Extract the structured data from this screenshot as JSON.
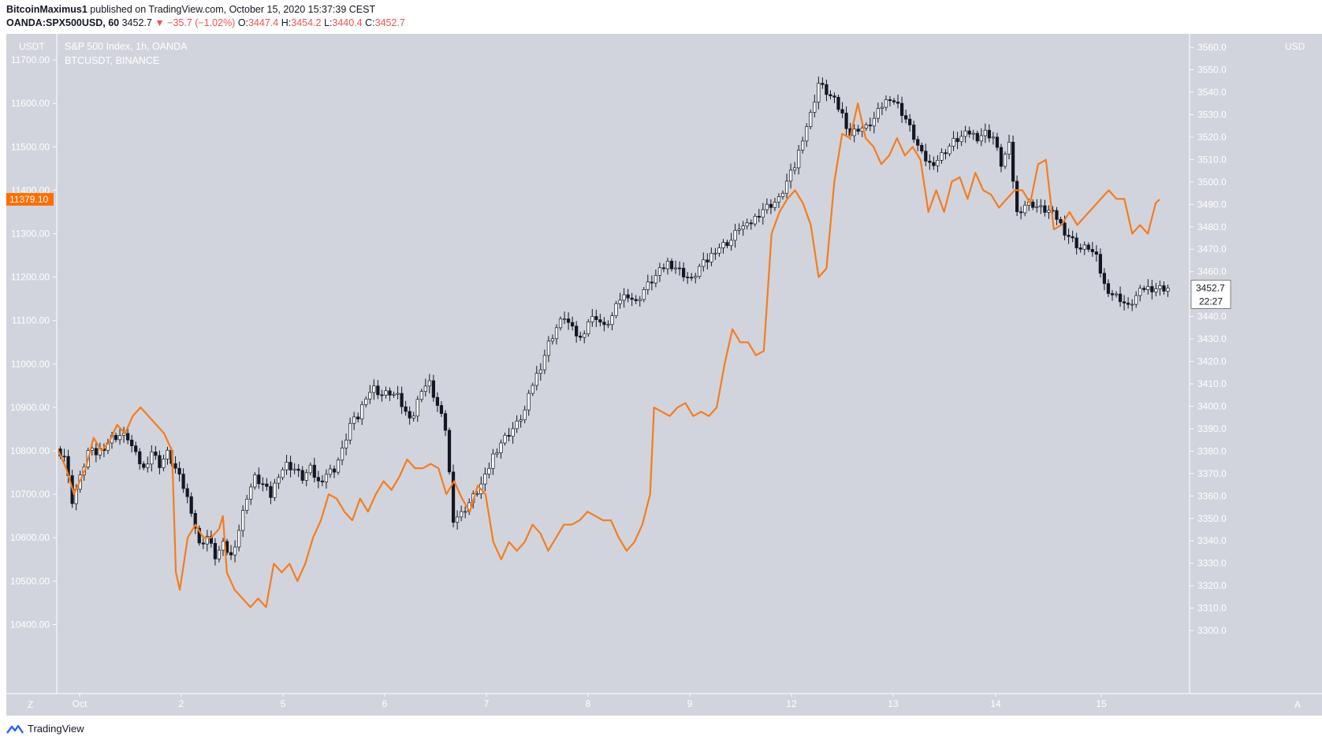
{
  "header": {
    "author": "BitcoinMaximus1",
    "published_text": "published on TradingView.com, October 15, 2020 15:37:39 CEST",
    "symbol": "OANDA:SPX500USD, 60",
    "last": "3452.7",
    "arrow": "▼",
    "change": "−35.7 (−1.02%)",
    "o_label": "O:",
    "o_val": "3447.4",
    "h_label": "H:",
    "h_val": "3454.2",
    "l_label": "L:",
    "l_val": "3440.4",
    "c_label": "C:",
    "c_val": "3452.7"
  },
  "legend": {
    "main": "S&P 500 Index, 1h, OANDA",
    "compare": "BTCUSDT, BINANCE"
  },
  "units": {
    "left": "USDT",
    "right": "USD"
  },
  "corners": {
    "left": "Z",
    "right": "A"
  },
  "footer": {
    "brand": "TradingView"
  },
  "colors": {
    "bg": "#d1d4dc",
    "btc": "#f57c1f",
    "up": "#ffffff",
    "down": "#131722",
    "wick": "#131722",
    "label_accent": "#ff6d00"
  },
  "chart_data": {
    "type": "line",
    "title": "S&P 500 Index, 1h, OANDA",
    "xlabel": "",
    "ylabel": "",
    "x_ticks": [
      "Oct",
      "2",
      "5",
      "6",
      "7",
      "8",
      "9",
      "12",
      "13",
      "14",
      "15"
    ],
    "left_axis": {
      "unit": "USDT",
      "ylim": [
        10350,
        11760
      ],
      "ticks": [
        "10400.00",
        "10500.00",
        "10600.00",
        "10700.00",
        "10800.00",
        "10900.00",
        "11000.00",
        "11100.00",
        "11200.00",
        "11300.00",
        "11400.00",
        "11500.00",
        "11600.00",
        "11700.00"
      ]
    },
    "right_axis": {
      "unit": "USD",
      "ylim": [
        3293,
        3566
      ],
      "ticks": [
        "3300.0",
        "3310.0",
        "3320.0",
        "3330.0",
        "3340.0",
        "3350.0",
        "3360.0",
        "3370.0",
        "3380.0",
        "3390.0",
        "3400.0",
        "3410.0",
        "3420.0",
        "3430.0",
        "3440.0",
        "3450.0",
        "3460.0",
        "3470.0",
        "3480.0",
        "3490.0",
        "3500.0",
        "3510.0",
        "3520.0",
        "3530.0",
        "3540.0",
        "3550.0",
        "3560.0"
      ]
    },
    "current_labels": {
      "btc": "11379.10",
      "spx": "3452.7",
      "countdown": "22:27"
    },
    "series": [
      {
        "name": "BTCUSDT, BINANCE",
        "axis": "left",
        "anchors": [
          [
            0,
            10800
          ],
          [
            2,
            10760
          ],
          [
            4,
            10700
          ],
          [
            7,
            10760
          ],
          [
            9,
            10830
          ],
          [
            11,
            10800
          ],
          [
            13,
            10820
          ],
          [
            15,
            10860
          ],
          [
            17,
            10840
          ],
          [
            19,
            10880
          ],
          [
            21,
            10900
          ],
          [
            23,
            10880
          ],
          [
            25,
            10860
          ],
          [
            27,
            10840
          ],
          [
            29,
            10800
          ],
          [
            30,
            10520
          ],
          [
            31,
            10480
          ],
          [
            33,
            10600
          ],
          [
            35,
            10630
          ],
          [
            37,
            10600
          ],
          [
            39,
            10600
          ],
          [
            41,
            10620
          ],
          [
            42,
            10650
          ],
          [
            43,
            10520
          ],
          [
            45,
            10480
          ],
          [
            47,
            10460
          ],
          [
            49,
            10440
          ],
          [
            51,
            10460
          ],
          [
            53,
            10440
          ],
          [
            55,
            10540
          ],
          [
            57,
            10520
          ],
          [
            59,
            10540
          ],
          [
            61,
            10500
          ],
          [
            63,
            10540
          ],
          [
            65,
            10600
          ],
          [
            67,
            10640
          ],
          [
            69,
            10700
          ],
          [
            71,
            10690
          ],
          [
            73,
            10660
          ],
          [
            75,
            10640
          ],
          [
            77,
            10690
          ],
          [
            79,
            10660
          ],
          [
            81,
            10700
          ],
          [
            83,
            10730
          ],
          [
            85,
            10710
          ],
          [
            87,
            10740
          ],
          [
            89,
            10780
          ],
          [
            91,
            10760
          ],
          [
            93,
            10760
          ],
          [
            95,
            10770
          ],
          [
            97,
            10760
          ],
          [
            99,
            10700
          ],
          [
            101,
            10730
          ],
          [
            103,
            10690
          ],
          [
            105,
            10660
          ],
          [
            107,
            10720
          ],
          [
            109,
            10700
          ],
          [
            111,
            10590
          ],
          [
            113,
            10550
          ],
          [
            115,
            10590
          ],
          [
            117,
            10570
          ],
          [
            119,
            10590
          ],
          [
            121,
            10630
          ],
          [
            123,
            10610
          ],
          [
            125,
            10570
          ],
          [
            127,
            10600
          ],
          [
            129,
            10630
          ],
          [
            131,
            10630
          ],
          [
            133,
            10640
          ],
          [
            135,
            10660
          ],
          [
            137,
            10650
          ],
          [
            139,
            10640
          ],
          [
            141,
            10640
          ],
          [
            143,
            10600
          ],
          [
            145,
            10570
          ],
          [
            147,
            10590
          ],
          [
            149,
            10630
          ],
          [
            151,
            10700
          ],
          [
            152,
            10900
          ],
          [
            154,
            10890
          ],
          [
            156,
            10880
          ],
          [
            158,
            10900
          ],
          [
            160,
            10910
          ],
          [
            162,
            10880
          ],
          [
            164,
            10890
          ],
          [
            166,
            10880
          ],
          [
            168,
            10900
          ],
          [
            170,
            11000
          ],
          [
            172,
            11080
          ],
          [
            174,
            11050
          ],
          [
            176,
            11050
          ],
          [
            178,
            11020
          ],
          [
            180,
            11030
          ],
          [
            182,
            11300
          ],
          [
            184,
            11350
          ],
          [
            186,
            11380
          ],
          [
            188,
            11400
          ],
          [
            190,
            11370
          ],
          [
            192,
            11320
          ],
          [
            194,
            11200
          ],
          [
            196,
            11220
          ],
          [
            198,
            11420
          ],
          [
            200,
            11530
          ],
          [
            202,
            11520
          ],
          [
            204,
            11600
          ],
          [
            206,
            11520
          ],
          [
            208,
            11500
          ],
          [
            210,
            11460
          ],
          [
            212,
            11480
          ],
          [
            214,
            11520
          ],
          [
            216,
            11480
          ],
          [
            218,
            11500
          ],
          [
            220,
            11470
          ],
          [
            222,
            11350
          ],
          [
            224,
            11400
          ],
          [
            226,
            11350
          ],
          [
            228,
            11420
          ],
          [
            230,
            11430
          ],
          [
            232,
            11380
          ],
          [
            234,
            11440
          ],
          [
            236,
            11400
          ],
          [
            238,
            11390
          ],
          [
            240,
            11360
          ],
          [
            242,
            11380
          ],
          [
            244,
            11400
          ],
          [
            246,
            11400
          ],
          [
            248,
            11370
          ],
          [
            250,
            11460
          ],
          [
            252,
            11470
          ],
          [
            254,
            11310
          ],
          [
            256,
            11320
          ],
          [
            258,
            11350
          ],
          [
            260,
            11320
          ],
          [
            262,
            11340
          ],
          [
            264,
            11360
          ],
          [
            266,
            11380
          ],
          [
            268,
            11400
          ],
          [
            270,
            11380
          ],
          [
            272,
            11380
          ],
          [
            274,
            11300
          ],
          [
            276,
            11320
          ],
          [
            278,
            11300
          ],
          [
            280,
            11370
          ],
          [
            281,
            11379
          ]
        ]
      },
      {
        "name": "OANDA:SPX500USD, 60",
        "axis": "right",
        "kind": "candles",
        "bars": 280,
        "anchors": [
          [
            0,
            3381
          ],
          [
            2,
            3378
          ],
          [
            4,
            3358
          ],
          [
            6,
            3368
          ],
          [
            8,
            3380
          ],
          [
            10,
            3379
          ],
          [
            12,
            3382
          ],
          [
            14,
            3386
          ],
          [
            16,
            3387
          ],
          [
            18,
            3386
          ],
          [
            20,
            3378
          ],
          [
            22,
            3372
          ],
          [
            24,
            3380
          ],
          [
            26,
            3374
          ],
          [
            28,
            3379
          ],
          [
            30,
            3372
          ],
          [
            32,
            3364
          ],
          [
            34,
            3354
          ],
          [
            36,
            3338
          ],
          [
            38,
            3342
          ],
          [
            40,
            3333
          ],
          [
            42,
            3338
          ],
          [
            44,
            3333
          ],
          [
            46,
            3345
          ],
          [
            48,
            3360
          ],
          [
            50,
            3368
          ],
          [
            52,
            3365
          ],
          [
            54,
            3360
          ],
          [
            56,
            3370
          ],
          [
            58,
            3374
          ],
          [
            60,
            3372
          ],
          [
            62,
            3368
          ],
          [
            64,
            3372
          ],
          [
            66,
            3366
          ],
          [
            68,
            3370
          ],
          [
            70,
            3372
          ],
          [
            72,
            3380
          ],
          [
            74,
            3392
          ],
          [
            76,
            3395
          ],
          [
            78,
            3405
          ],
          [
            80,
            3408
          ],
          [
            82,
            3405
          ],
          [
            84,
            3406
          ],
          [
            86,
            3404
          ],
          [
            88,
            3397
          ],
          [
            90,
            3396
          ],
          [
            92,
            3408
          ],
          [
            94,
            3410
          ],
          [
            96,
            3400
          ],
          [
            98,
            3390
          ],
          [
            100,
            3350
          ],
          [
            102,
            3352
          ],
          [
            104,
            3357
          ],
          [
            106,
            3362
          ],
          [
            108,
            3368
          ],
          [
            110,
            3378
          ],
          [
            112,
            3384
          ],
          [
            114,
            3388
          ],
          [
            116,
            3392
          ],
          [
            118,
            3398
          ],
          [
            120,
            3410
          ],
          [
            122,
            3418
          ],
          [
            124,
            3428
          ],
          [
            126,
            3435
          ],
          [
            128,
            3440
          ],
          [
            130,
            3434
          ],
          [
            132,
            3430
          ],
          [
            134,
            3438
          ],
          [
            136,
            3440
          ],
          [
            138,
            3435
          ],
          [
            140,
            3440
          ],
          [
            142,
            3448
          ],
          [
            144,
            3450
          ],
          [
            146,
            3446
          ],
          [
            148,
            3452
          ],
          [
            150,
            3456
          ],
          [
            152,
            3460
          ],
          [
            154,
            3464
          ],
          [
            156,
            3462
          ],
          [
            158,
            3459
          ],
          [
            160,
            3456
          ],
          [
            162,
            3462
          ],
          [
            164,
            3465
          ],
          [
            166,
            3470
          ],
          [
            168,
            3472
          ],
          [
            170,
            3474
          ],
          [
            172,
            3480
          ],
          [
            174,
            3480
          ],
          [
            176,
            3484
          ],
          [
            178,
            3488
          ],
          [
            180,
            3490
          ],
          [
            182,
            3492
          ],
          [
            184,
            3500
          ],
          [
            186,
            3507
          ],
          [
            188,
            3520
          ],
          [
            190,
            3530
          ],
          [
            192,
            3544
          ],
          [
            194,
            3540
          ],
          [
            196,
            3536
          ],
          [
            198,
            3530
          ],
          [
            200,
            3521
          ],
          [
            202,
            3524
          ],
          [
            204,
            3524
          ],
          [
            206,
            3528
          ],
          [
            208,
            3534
          ],
          [
            210,
            3538
          ],
          [
            212,
            3534
          ],
          [
            214,
            3528
          ],
          [
            216,
            3520
          ],
          [
            218,
            3512
          ],
          [
            220,
            3508
          ],
          [
            222,
            3510
          ],
          [
            224,
            3514
          ],
          [
            226,
            3518
          ],
          [
            228,
            3520
          ],
          [
            230,
            3522
          ],
          [
            232,
            3520
          ],
          [
            234,
            3522
          ],
          [
            236,
            3520
          ],
          [
            238,
            3508
          ],
          [
            240,
            3516
          ],
          [
            242,
            3486
          ],
          [
            244,
            3490
          ],
          [
            246,
            3490
          ],
          [
            248,
            3488
          ],
          [
            250,
            3487
          ],
          [
            252,
            3484
          ],
          [
            254,
            3478
          ],
          [
            256,
            3474
          ],
          [
            258,
            3470
          ],
          [
            260,
            3471
          ],
          [
            262,
            3466
          ],
          [
            264,
            3454
          ],
          [
            266,
            3450
          ],
          [
            268,
            3448
          ],
          [
            270,
            3444
          ],
          [
            272,
            3449
          ],
          [
            274,
            3452.7
          ]
        ]
      }
    ]
  }
}
